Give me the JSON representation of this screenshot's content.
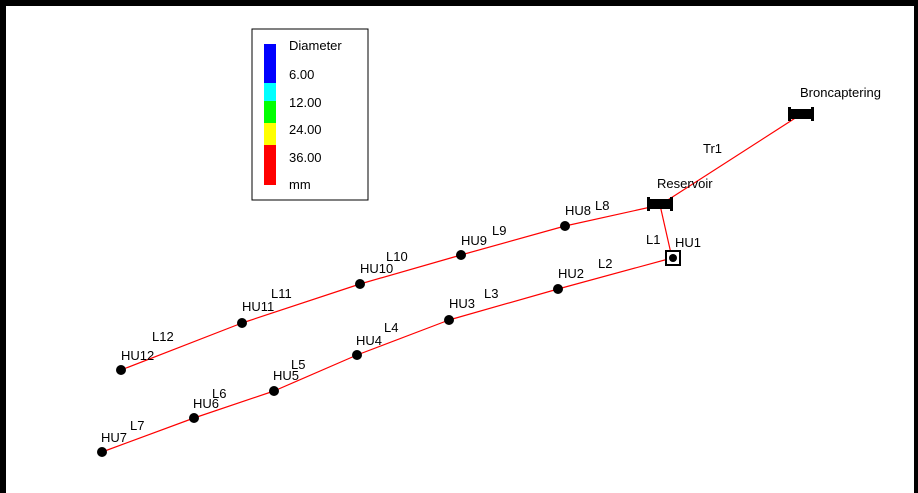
{
  "legend": {
    "title": "Diameter",
    "items": [
      {
        "label": "6.00",
        "color": "#0000ff"
      },
      {
        "label": "12.00",
        "color": "#00ffff"
      },
      {
        "label": "24.00",
        "color": "#00ff00"
      },
      {
        "label": "36.00",
        "color": "#ffff00"
      },
      {
        "label": "mm",
        "color": "#ff0000"
      }
    ],
    "top_swatch_color": "#0000ff"
  },
  "nodes": {
    "reservoir": "Reservoir",
    "broncaptering": "Broncaptering",
    "junctions": [
      "HU1",
      "HU2",
      "HU3",
      "HU4",
      "HU5",
      "HU6",
      "HU7",
      "HU8",
      "HU9",
      "HU10",
      "HU11",
      "HU12"
    ]
  },
  "links": [
    "Tr1",
    "L1",
    "L2",
    "L3",
    "L4",
    "L5",
    "L6",
    "L7",
    "L8",
    "L9",
    "L10",
    "L11",
    "L12"
  ],
  "pipe_color": "#ff0000"
}
